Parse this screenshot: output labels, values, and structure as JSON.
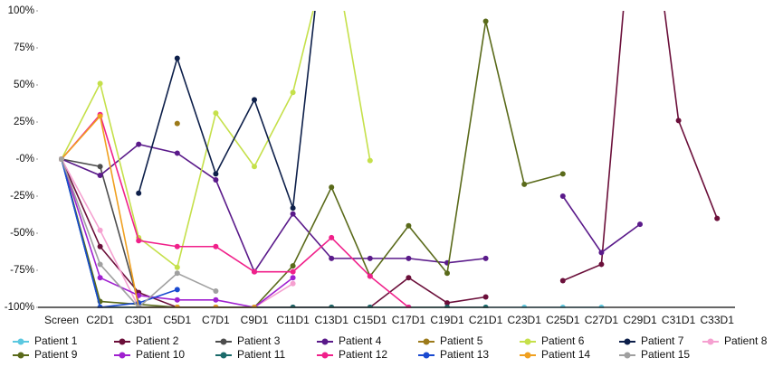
{
  "chart_data": {
    "type": "line",
    "categories": [
      "Screen",
      "C2D1",
      "C3D1",
      "C5D1",
      "C7D1",
      "C9D1",
      "C11D1",
      "C13D1",
      "C15D1",
      "C17D1",
      "C19D1",
      "C21D1",
      "C23D1",
      "C25D1",
      "C27D1",
      "C29D1",
      "C31D1",
      "C33D1"
    ],
    "ylim": [
      -100,
      100
    ],
    "yticks": [
      {
        "value": 100,
        "label": "100%"
      },
      {
        "value": 75,
        "label": "75%"
      },
      {
        "value": 50,
        "label": "50%"
      },
      {
        "value": 25,
        "label": "25%"
      },
      {
        "value": 0,
        "label": "-0%"
      },
      {
        "value": -25,
        "label": "-25%"
      },
      {
        "value": -50,
        "label": "-50%"
      },
      {
        "value": -75,
        "label": "-75%"
      },
      {
        "value": -100,
        "label": "-100%"
      }
    ],
    "legend": "bottom",
    "series": [
      {
        "name": "Patient 1",
        "color": "#5bc8e0",
        "values": [
          0,
          -100,
          -100,
          -100,
          -100,
          -100,
          -100,
          -100,
          -100,
          -100,
          -100,
          -100,
          -100,
          -100,
          -100,
          null,
          null,
          null
        ]
      },
      {
        "name": "Patient 2",
        "color": "#6b0f3a",
        "values": [
          0,
          -59,
          -90,
          -100,
          -100,
          -100,
          -100,
          -100,
          -100,
          -80,
          -97,
          -93,
          null,
          -82,
          -71,
          230,
          26,
          -40
        ]
      },
      {
        "name": "Patient 3",
        "color": "#4d4d4d",
        "values": [
          0,
          -5,
          -97,
          null,
          null,
          null,
          null,
          null,
          null,
          null,
          null,
          null,
          null,
          null,
          null,
          null,
          null,
          null
        ]
      },
      {
        "name": "Patient 4",
        "color": "#5a1a8a",
        "values": [
          0,
          -11,
          10,
          4,
          -14,
          -76,
          -37,
          -67,
          -67,
          -67,
          -70,
          -67,
          null,
          -25,
          -63,
          -44,
          null,
          null
        ]
      },
      {
        "name": "Patient 5",
        "color": "#9c7a1a",
        "values": [
          null,
          null,
          null,
          24,
          null,
          null,
          null,
          null,
          null,
          null,
          null,
          null,
          null,
          null,
          null,
          null,
          null,
          null
        ]
      },
      {
        "name": "Patient 6",
        "color": "#c5e04a",
        "values": [
          0,
          51,
          -53,
          -73,
          31,
          -5,
          45,
          150,
          -1,
          null,
          null,
          null,
          null,
          null,
          null,
          null,
          null,
          null
        ]
      },
      {
        "name": "Patient 7",
        "color": "#0d1f4a",
        "values": [
          null,
          null,
          -23,
          68,
          -10,
          40,
          -33,
          200,
          null,
          null,
          null,
          null,
          null,
          null,
          null,
          null,
          null,
          null
        ]
      },
      {
        "name": "Patient 8",
        "color": "#f5a0d0",
        "values": [
          0,
          -48,
          -100,
          -100,
          -100,
          -100,
          -84,
          null,
          null,
          null,
          null,
          null,
          null,
          null,
          null,
          null,
          null,
          null
        ]
      },
      {
        "name": "Patient 9",
        "color": "#5a6a1a",
        "values": [
          0,
          -96,
          -98,
          -100,
          -100,
          -100,
          -72,
          -19,
          -79,
          -45,
          -77,
          93,
          -17,
          -10,
          null,
          null,
          null,
          null
        ]
      },
      {
        "name": "Patient 10",
        "color": "#a020d0",
        "values": [
          0,
          -80,
          -92,
          -95,
          -95,
          -100,
          -80,
          null,
          null,
          null,
          null,
          null,
          null,
          null,
          null,
          null,
          null,
          null
        ]
      },
      {
        "name": "Patient 11",
        "color": "#1a6a6a",
        "values": [
          0,
          -100,
          -100,
          -100,
          -100,
          -100,
          -100,
          -100,
          -100,
          -100,
          -100,
          -100,
          null,
          null,
          null,
          null,
          null,
          null
        ]
      },
      {
        "name": "Patient 12",
        "color": "#f0208a",
        "values": [
          0,
          30,
          -55,
          -59,
          -59,
          -76,
          -76,
          -53,
          -79,
          -100,
          null,
          null,
          null,
          null,
          null,
          null,
          null,
          null
        ]
      },
      {
        "name": "Patient 13",
        "color": "#1a4ad0",
        "values": [
          0,
          -100,
          -97,
          -88,
          null,
          null,
          null,
          null,
          null,
          null,
          null,
          null,
          null,
          null,
          null,
          null,
          null,
          null
        ]
      },
      {
        "name": "Patient 14",
        "color": "#f0a020",
        "values": [
          0,
          29,
          -100,
          -100,
          -100,
          -100,
          null,
          null,
          null,
          null,
          null,
          null,
          null,
          null,
          null,
          null,
          null,
          null
        ]
      },
      {
        "name": "Patient 15",
        "color": "#a0a0a0",
        "values": [
          0,
          -71,
          -100,
          -77,
          -89,
          null,
          null,
          null,
          null,
          null,
          null,
          null,
          null,
          null,
          null,
          null,
          null,
          null
        ]
      }
    ]
  }
}
